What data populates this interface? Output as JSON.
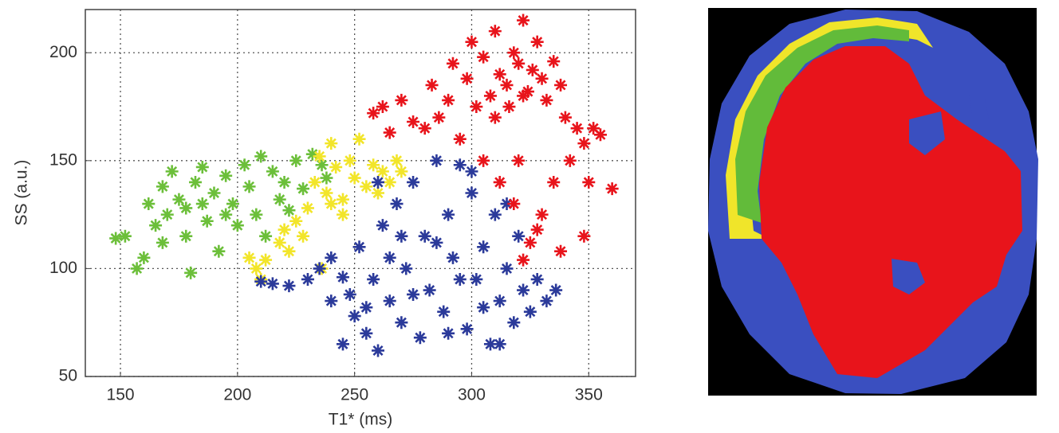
{
  "chart_data": {
    "type": "scatter",
    "x_label": "T1* (ms)",
    "y_label": "SS (a.u.)",
    "xlim": [
      135,
      370
    ],
    "ylim": [
      50,
      220
    ],
    "xticks": [
      150,
      200,
      250,
      300,
      350
    ],
    "yticks": [
      50,
      100,
      150,
      200
    ],
    "grid": true,
    "series": [
      {
        "color": "#6cbf3a",
        "x": [
          148,
          152,
          157,
          160,
          162,
          165,
          168,
          170,
          172,
          175,
          178,
          180,
          182,
          185,
          187,
          190,
          192,
          195,
          198,
          200,
          203,
          205,
          208,
          210,
          212,
          215,
          218,
          220,
          222,
          225,
          228,
          232,
          236,
          238,
          178,
          168,
          185,
          195
        ],
        "y": [
          114,
          115,
          100,
          105,
          130,
          120,
          138,
          125,
          145,
          132,
          128,
          98,
          140,
          147,
          122,
          135,
          108,
          143,
          130,
          120,
          148,
          138,
          125,
          152,
          115,
          145,
          132,
          140,
          127,
          150,
          137,
          153,
          148,
          142,
          115,
          112,
          130,
          125
        ]
      },
      {
        "color": "#f2e52a",
        "x": [
          205,
          208,
          210,
          212,
          218,
          220,
          222,
          225,
          230,
          233,
          235,
          238,
          240,
          242,
          245,
          248,
          250,
          252,
          255,
          258,
          260,
          262,
          265,
          268,
          270,
          245,
          228,
          236,
          240
        ],
        "y": [
          105,
          100,
          95,
          104,
          112,
          118,
          108,
          122,
          128,
          140,
          152,
          135,
          158,
          147,
          132,
          150,
          142,
          160,
          138,
          148,
          135,
          145,
          140,
          150,
          145,
          125,
          115,
          100,
          130
        ]
      },
      {
        "color": "#2b3a9a",
        "x": [
          210,
          215,
          222,
          230,
          235,
          240,
          245,
          248,
          250,
          252,
          255,
          258,
          260,
          262,
          265,
          268,
          270,
          272,
          275,
          278,
          280,
          282,
          285,
          288,
          290,
          292,
          295,
          298,
          300,
          302,
          305,
          308,
          310,
          312,
          315,
          318,
          320,
          322,
          325,
          328,
          332,
          336,
          245,
          255,
          265,
          275,
          285,
          295,
          305,
          315,
          260,
          300,
          312,
          270,
          290,
          240
        ],
        "y": [
          94,
          93,
          92,
          95,
          100,
          105,
          96,
          88,
          78,
          110,
          70,
          95,
          62,
          120,
          85,
          130,
          75,
          100,
          140,
          68,
          115,
          90,
          150,
          80,
          125,
          105,
          148,
          72,
          135,
          95,
          110,
          65,
          125,
          85,
          100,
          75,
          115,
          90,
          80,
          95,
          85,
          90,
          65,
          82,
          105,
          88,
          112,
          95,
          82,
          130,
          140,
          145,
          65,
          115,
          70,
          85
        ]
      },
      {
        "color": "#e8141b",
        "x": [
          258,
          262,
          265,
          270,
          275,
          280,
          283,
          286,
          290,
          292,
          295,
          298,
          300,
          302,
          305,
          308,
          310,
          312,
          315,
          318,
          320,
          322,
          324,
          326,
          328,
          330,
          332,
          335,
          338,
          340,
          342,
          345,
          348,
          352,
          355,
          350,
          360,
          348,
          335,
          330,
          325,
          322,
          318,
          312,
          328,
          305,
          320,
          338,
          316,
          322,
          310
        ],
        "y": [
          172,
          175,
          163,
          178,
          168,
          165,
          185,
          170,
          178,
          195,
          160,
          188,
          205,
          175,
          198,
          180,
          210,
          190,
          185,
          200,
          195,
          215,
          182,
          192,
          205,
          188,
          178,
          196,
          185,
          170,
          150,
          165,
          158,
          165,
          162,
          140,
          137,
          115,
          140,
          125,
          112,
          104,
          130,
          140,
          118,
          150,
          150,
          108,
          175,
          180,
          170
        ]
      }
    ]
  }
}
